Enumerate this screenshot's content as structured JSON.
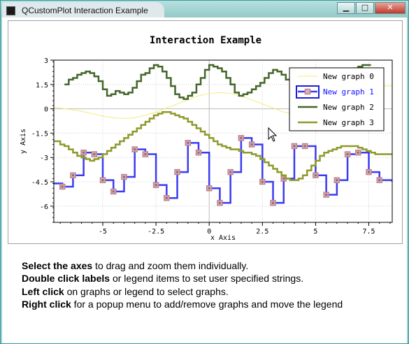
{
  "window": {
    "title": "QCustomPlot Interaction Example",
    "min_glyph": "▁",
    "max_glyph": "□",
    "close_glyph": "✕"
  },
  "instructions": [
    {
      "bold": "Select the axes",
      "rest": " to drag and zoom them individually."
    },
    {
      "bold": "Double click labels",
      "rest": " or legend items to set user specified strings."
    },
    {
      "bold": "Left click",
      "rest": " on graphs or legend to select graphs."
    },
    {
      "bold": "Right click",
      "rest": " for a popup menu to add/remove graphs and move the legend"
    }
  ],
  "chart_data": {
    "type": "line",
    "title": "Interaction Example",
    "xlabel": "x Axis",
    "ylabel": "y Axis",
    "xlim": [
      -7.3,
      8.6
    ],
    "ylim": [
      -7.0,
      3.0
    ],
    "xticks": [
      -5,
      -2.5,
      0,
      2.5,
      5,
      7.5
    ],
    "xtick_labels": [
      "-5",
      "-2.5",
      "0",
      "2.5",
      "5",
      "7.5"
    ],
    "yticks": [
      3,
      1.5,
      0,
      -1.5,
      -3,
      -4.5,
      -6
    ],
    "ytick_labels": [
      "3",
      "1.5",
      "0",
      "-1.5",
      "-3",
      "-4.5",
      "-6"
    ],
    "grid": true,
    "legend_position": "top-right",
    "selected_series": "New graph 1",
    "series": [
      {
        "name": "New graph 0",
        "color": "#f3ec7b",
        "style": "line",
        "x": [
          -7.3,
          -6.5,
          -6,
          -5.5,
          -5,
          -4.5,
          -4,
          -3.5,
          -3,
          -2.5,
          -2,
          -1.5,
          -1,
          -0.5,
          0,
          0.5,
          1,
          1.5,
          2,
          2.5,
          3,
          3.5,
          4,
          4.5,
          5,
          5.5,
          6,
          6.5,
          7,
          7.5,
          8,
          8.6
        ],
        "y": [
          0.1,
          -0.05,
          -0.15,
          -0.3,
          -0.45,
          -0.55,
          -0.6,
          -0.55,
          -0.4,
          -0.2,
          0.05,
          0.3,
          0.55,
          0.8,
          0.95,
          1.0,
          0.95,
          0.8,
          0.55,
          0.3,
          0.05,
          -0.2,
          -0.3,
          -0.3,
          -0.15,
          0.15,
          0.5,
          0.85,
          1.15,
          1.3,
          1.4,
          1.4
        ]
      },
      {
        "name": "New graph 1",
        "color": "#3b3bf0",
        "style": "step",
        "markers": true,
        "x": [
          -7.3,
          -6.9,
          -6.4,
          -5.9,
          -5.4,
          -5.0,
          -4.5,
          -4.0,
          -3.5,
          -3.0,
          -2.5,
          -2.0,
          -1.5,
          -1.0,
          -0.5,
          0.0,
          0.5,
          1.0,
          1.5,
          2.0,
          2.5,
          3.0,
          3.5,
          4.0,
          4.5,
          5.0,
          5.5,
          6.0,
          6.5,
          7.0,
          7.5,
          8.0,
          8.6
        ],
        "y": [
          -4.6,
          -4.8,
          -4.1,
          -2.7,
          -2.8,
          -4.4,
          -5.1,
          -4.2,
          -2.5,
          -2.8,
          -4.7,
          -5.5,
          -3.9,
          -2.1,
          -2.7,
          -4.9,
          -5.8,
          -3.9,
          -1.8,
          -2.2,
          -4.5,
          -5.8,
          -4.3,
          -2.3,
          -2.3,
          -4.1,
          -5.3,
          -4.4,
          -2.8,
          -2.7,
          -3.9,
          -4.4,
          -4.5
        ]
      },
      {
        "name": "New graph 2",
        "color": "#44662a",
        "style": "step",
        "x": [
          -6.8,
          -6.6,
          -6.4,
          -6.2,
          -6.0,
          -5.8,
          -5.6,
          -5.4,
          -5.2,
          -5.0,
          -4.8,
          -4.6,
          -4.4,
          -4.2,
          -4.0,
          -3.8,
          -3.6,
          -3.4,
          -3.2,
          -3.0,
          -2.8,
          -2.6,
          -2.4,
          -2.2,
          -2.0,
          -1.8,
          -1.6,
          -1.4,
          -1.2,
          -1.0,
          -0.8,
          -0.6,
          -0.4,
          -0.2,
          0.0,
          0.2,
          0.4,
          0.6,
          0.8,
          1.0,
          1.2,
          1.4,
          1.6,
          1.8,
          2.0,
          2.2,
          2.4,
          2.6,
          2.8,
          3.0,
          3.2,
          3.4,
          3.6,
          3.8,
          4.0,
          4.2,
          4.4,
          4.6,
          4.8,
          5.0,
          5.2,
          5.4,
          5.6,
          5.8,
          6.0,
          6.2,
          6.4,
          6.6,
          6.8,
          7.0,
          7.2,
          7.4,
          7.6
        ],
        "y": [
          1.5,
          1.8,
          1.9,
          2.1,
          2.2,
          2.3,
          2.2,
          2.0,
          1.7,
          1.2,
          0.8,
          0.9,
          1.1,
          1.0,
          0.9,
          1.0,
          1.3,
          1.7,
          2.1,
          2.2,
          2.5,
          2.7,
          2.6,
          2.3,
          1.9,
          1.4,
          0.9,
          0.7,
          0.6,
          0.8,
          1.0,
          1.5,
          1.9,
          2.4,
          2.7,
          2.6,
          2.5,
          2.3,
          1.9,
          1.5,
          1.0,
          0.8,
          0.9,
          1.0,
          1.2,
          1.4,
          1.6,
          1.9,
          2.2,
          2.4,
          2.3,
          2.1,
          1.8,
          1.4,
          1.0,
          0.5,
          0.4,
          0.7,
          1.0,
          1.3,
          1.5,
          1.6,
          1.8,
          2.0,
          2.1,
          2.2,
          2.3,
          2.4,
          2.5,
          2.6,
          2.7,
          2.7,
          2.7
        ]
      },
      {
        "name": "New graph 3",
        "color": "#8f9a2a",
        "style": "step",
        "x": [
          -7.3,
          -7.0,
          -6.8,
          -6.6,
          -6.4,
          -6.2,
          -6.0,
          -5.8,
          -5.6,
          -5.4,
          -5.2,
          -5.0,
          -4.8,
          -4.6,
          -4.4,
          -4.2,
          -4.0,
          -3.8,
          -3.6,
          -3.4,
          -3.2,
          -3.0,
          -2.8,
          -2.6,
          -2.4,
          -2.2,
          -2.0,
          -1.8,
          -1.6,
          -1.4,
          -1.2,
          -1.0,
          -0.8,
          -0.6,
          -0.4,
          -0.2,
          0.0,
          0.2,
          0.4,
          0.6,
          0.8,
          1.0,
          1.2,
          1.4,
          1.6,
          1.8,
          2.0,
          2.2,
          2.4,
          2.6,
          2.8,
          3.0,
          3.2,
          3.4,
          3.6,
          3.8,
          4.0,
          4.2,
          4.4,
          4.6,
          4.8,
          5.0,
          5.2,
          5.4,
          5.6,
          5.8,
          6.0,
          6.2,
          6.4,
          6.6,
          6.8,
          7.0,
          7.2,
          7.4,
          7.6,
          7.8,
          8.0,
          8.2,
          8.4,
          8.6
        ],
        "y": [
          -2.0,
          -2.2,
          -2.3,
          -2.5,
          -2.7,
          -2.9,
          -3.0,
          -3.1,
          -3.2,
          -3.1,
          -3.0,
          -2.8,
          -2.6,
          -2.4,
          -2.2,
          -2.0,
          -1.8,
          -1.6,
          -1.4,
          -1.2,
          -1.0,
          -0.8,
          -0.6,
          -0.4,
          -0.3,
          -0.2,
          -0.2,
          -0.3,
          -0.4,
          -0.5,
          -0.6,
          -0.8,
          -1.0,
          -1.2,
          -1.4,
          -1.6,
          -1.8,
          -2.0,
          -2.2,
          -2.3,
          -2.4,
          -2.5,
          -2.5,
          -2.6,
          -2.7,
          -2.7,
          -2.8,
          -2.9,
          -3.1,
          -3.3,
          -3.5,
          -3.7,
          -3.9,
          -4.1,
          -4.3,
          -4.4,
          -4.4,
          -4.3,
          -4.1,
          -3.8,
          -3.5,
          -3.2,
          -2.9,
          -2.7,
          -2.6,
          -2.5,
          -2.4,
          -2.3,
          -2.3,
          -2.3,
          -2.3,
          -2.4,
          -2.5,
          -2.6,
          -2.7,
          -2.8,
          -2.8,
          -2.8,
          -2.8,
          -2.8
        ]
      }
    ]
  }
}
